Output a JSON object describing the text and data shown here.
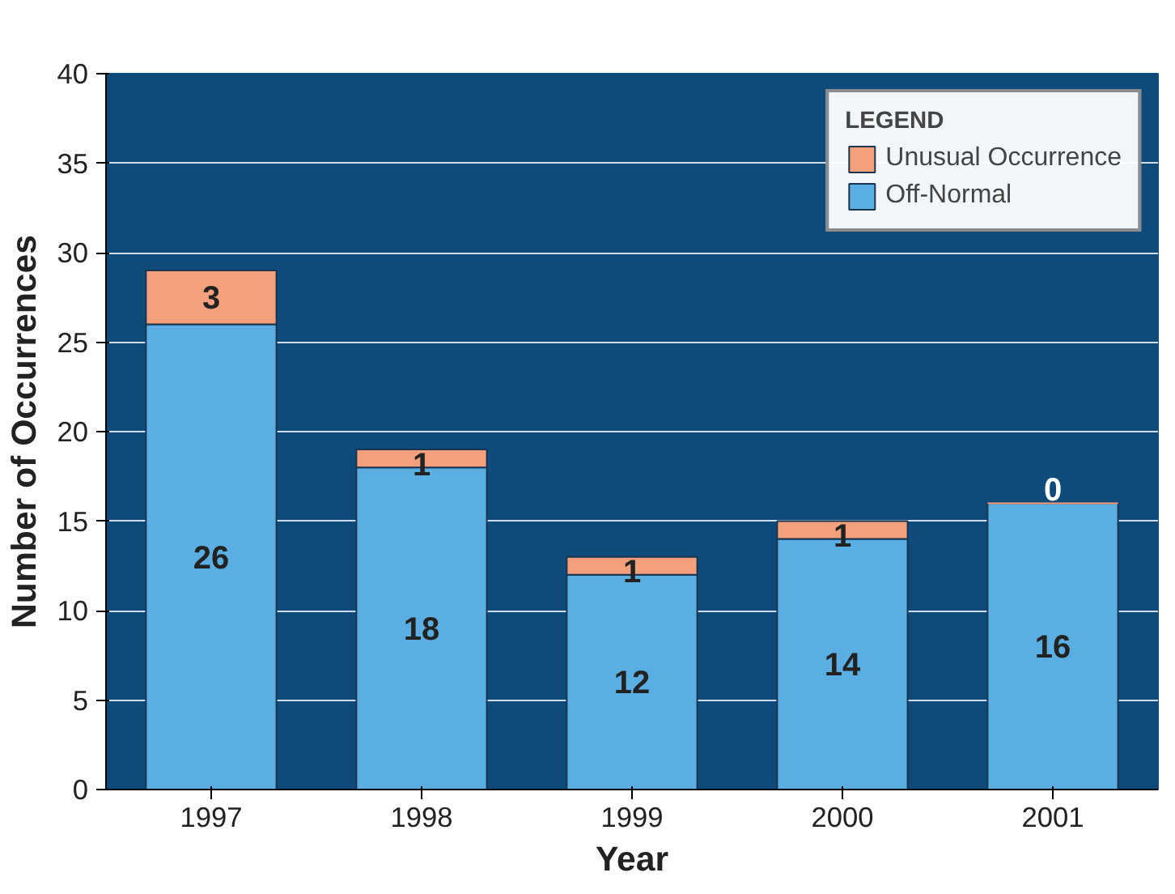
{
  "chart_data": {
    "type": "bar",
    "stacked": true,
    "xlabel": "Year",
    "ylabel": "Number of Occurrences",
    "legend_title": "LEGEND",
    "categories": [
      "1997",
      "1998",
      "1999",
      "2000",
      "2001"
    ],
    "series": [
      {
        "name": "Off-Normal",
        "color": "#5aaee2",
        "values": [
          26,
          18,
          12,
          14,
          16
        ]
      },
      {
        "name": "Unusual Occurrence",
        "color": "#f5a07c",
        "values": [
          3,
          1,
          1,
          1,
          0
        ]
      }
    ],
    "ylim": [
      0,
      40
    ],
    "yticks": [
      0,
      5,
      10,
      15,
      20,
      25,
      30,
      35,
      40
    ],
    "grid": "y",
    "legend": "top right",
    "data_labels": true
  }
}
